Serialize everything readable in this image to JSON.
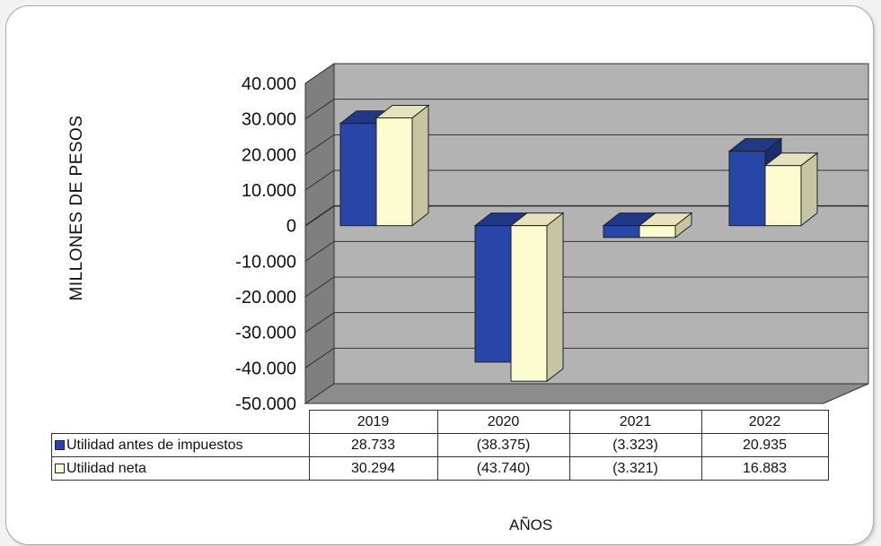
{
  "chart_data": {
    "type": "bar",
    "ylabel": "MILLONES DE PESOS",
    "xlabel": "AÑOS",
    "ylim": [
      -50000,
      40000
    ],
    "yticks": [
      "40.000",
      "30.000",
      "20.000",
      "10.000",
      "0",
      "-10.000",
      "-20.000",
      "-30.000",
      "-40.000",
      "-50.000"
    ],
    "categories": [
      "2019",
      "2020",
      "2021",
      "2022"
    ],
    "series": [
      {
        "name": "Utilidad antes de impuestos",
        "values": [
          28733,
          -38375,
          -3323,
          20935
        ],
        "labels": [
          "28.733",
          "(38.375)",
          "(3.323)",
          "20.935"
        ],
        "color": "#2846a8"
      },
      {
        "name": "Utilidad neta",
        "values": [
          30294,
          -43740,
          -3321,
          16883
        ],
        "labels": [
          "30.294",
          "(43.740)",
          "(3.321)",
          "16.883"
        ],
        "color": "#fdfcd0"
      }
    ],
    "grid": true,
    "style": "3d-clustered-column"
  }
}
